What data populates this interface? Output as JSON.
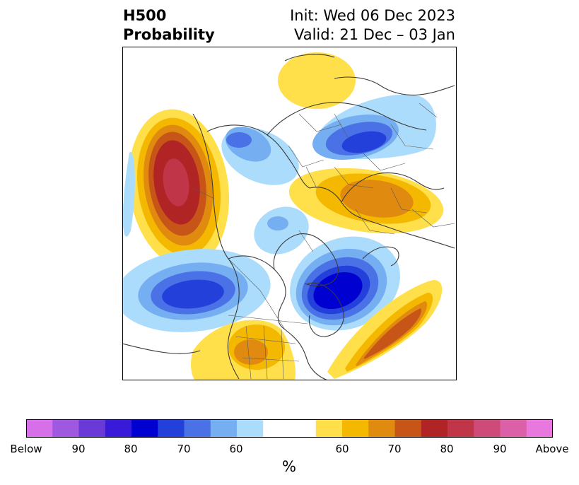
{
  "title": {
    "left_line1": "H500",
    "left_line2": "Probability",
    "right_line1": "Init: Wed 06 Dec 2023",
    "right_line2": "Valid: 21 Dec – 03 Jan"
  },
  "map": {
    "projection": "north polar stereographic",
    "variable": "500 hPa geopotential height tercile probability",
    "anomalies": [
      {
        "sign": "above",
        "region": "northeast-pacific",
        "max_prob": 85
      },
      {
        "sign": "above",
        "region": "southwest-us-mexico",
        "max_prob": 70
      },
      {
        "sign": "above",
        "region": "central-north-atlantic",
        "max_prob": 75
      },
      {
        "sign": "above",
        "region": "west-central-asia",
        "max_prob": 70
      },
      {
        "sign": "above",
        "region": "east-siberia-arctic",
        "max_prob": 60
      },
      {
        "sign": "below",
        "region": "hudson-bay-canada",
        "max_prob": 80
      },
      {
        "sign": "below",
        "region": "north-central-pacific",
        "max_prob": 80
      },
      {
        "sign": "below",
        "region": "scandinavia-europe",
        "max_prob": 75
      },
      {
        "sign": "below",
        "region": "bering-eastern-siberia",
        "max_prob": 70
      }
    ]
  },
  "colorbar": {
    "label": "%",
    "colors": [
      "#d770e8",
      "#9f58e0",
      "#6a3ad9",
      "#3a1ad9",
      "#0000d0",
      "#2440db",
      "#4a72e6",
      "#76aef2",
      "#acdcfc",
      "#ffffff",
      "#ffe04a",
      "#f5b800",
      "#e08a10",
      "#c85518",
      "#b02425",
      "#c03548",
      "#ce4a78",
      "#dc60a8",
      "#e878de"
    ],
    "color_count": 19,
    "white_span": 2,
    "ticks": [
      "Below",
      "90",
      "80",
      "70",
      "60",
      "60",
      "70",
      "80",
      "90",
      "Above"
    ]
  },
  "colors": {
    "above_60": "#ffe04a",
    "above_65": "#f5b800",
    "above_70": "#e08a10",
    "above_75": "#c85518",
    "above_80": "#b02425",
    "above_85": "#c03548",
    "below_60": "#acdcfc",
    "below_65": "#76aef2",
    "below_70": "#4a72e6",
    "below_75": "#2440db",
    "below_80": "#0000d0"
  }
}
